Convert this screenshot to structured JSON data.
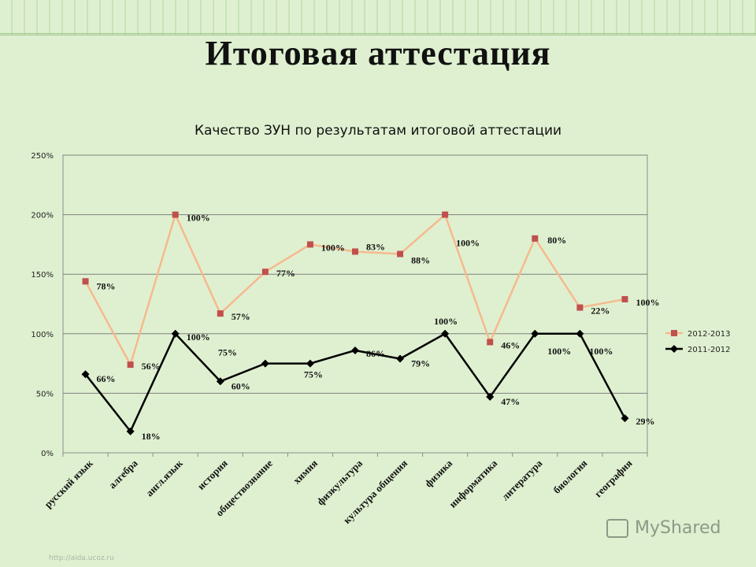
{
  "slide": {
    "title": "Итоговая аттестация",
    "watermark": "MyShared",
    "credit": "http://aida.ucoz.ru"
  },
  "colors": {
    "series_2012": "#f6b98e",
    "marker_2012": "#c0504d",
    "series_2011": "#000000",
    "grid": "#7f7f7f",
    "background": "#dff0d0"
  },
  "chart_data": {
    "type": "line",
    "title": "Качество ЗУН по результатам итоговой аттестации",
    "categories": [
      "русский язык",
      "алгебра",
      "англ.язык",
      "история",
      "обществознание",
      "химия",
      "физкультура",
      "культура общения",
      "физика",
      "информатика",
      "литература",
      "биология",
      "география"
    ],
    "yticks": [
      "0%",
      "50%",
      "100%",
      "150%",
      "200%",
      "250%"
    ],
    "ylim": [
      0,
      250
    ],
    "grid": true,
    "stacked": true,
    "legend_position": "right",
    "series": [
      {
        "name": "2012-2013",
        "values": [
          78,
          56,
          100,
          57,
          77,
          100,
          83,
          88,
          100,
          46,
          80,
          22,
          100
        ],
        "labels": [
          "78%",
          "56%",
          "100%",
          "57%",
          "77%",
          "100%",
          "83%",
          "88%",
          "100%",
          "46%",
          "80%",
          "22%",
          "100%"
        ],
        "marker": "square"
      },
      {
        "name": "2011-2012",
        "values": [
          66,
          18,
          100,
          60,
          75,
          75,
          86,
          79,
          100,
          47,
          100,
          100,
          29
        ],
        "labels": [
          "66%",
          "18%",
          "100%",
          "60%",
          "75%",
          "75%",
          "86%",
          "79%",
          "100%",
          "47%",
          "100%",
          "100%",
          "29%"
        ],
        "marker": "diamond"
      }
    ]
  }
}
